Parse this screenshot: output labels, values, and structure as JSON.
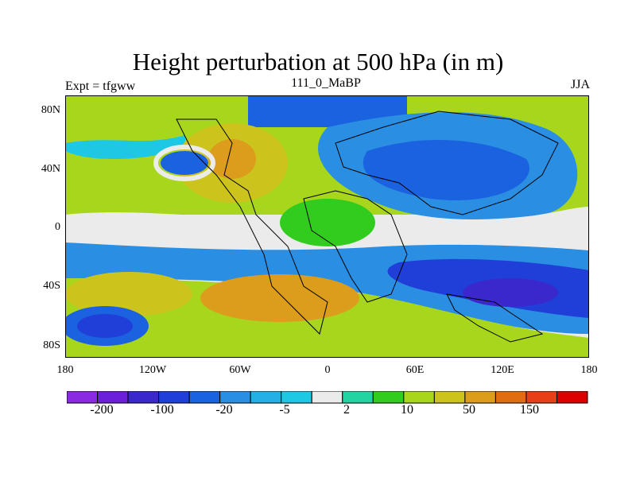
{
  "title": "Height perturbation at 500 hPa (in m)",
  "left_label": "Expt = tfgww",
  "center_label": "111_0_MaBP",
  "right_label": "JJA",
  "lat_ticks": [
    "80N",
    "40N",
    "0",
    "40S",
    "80S"
  ],
  "lon_ticks": [
    "180",
    "120W",
    "60W",
    "0",
    "60E",
    "120E",
    "180"
  ],
  "colorbar": {
    "colors": [
      "#8a2be2",
      "#6a1fd8",
      "#3a28cc",
      "#1f3fd8",
      "#1a62e0",
      "#2a8ee2",
      "#24b0e2",
      "#1ec8e4",
      "#ebebeb",
      "#24d4a0",
      "#32cc1e",
      "#a8d61c",
      "#ccc41c",
      "#dc9c1c",
      "#e06e10",
      "#e84016",
      "#dc0000"
    ],
    "labels": [
      "-200",
      "-100",
      "-20",
      "-5",
      "2",
      "10",
      "50",
      "150"
    ]
  },
  "colors": {
    "pale": "#ebebeb",
    "pos1": "#24d4a0",
    "pos2": "#32cc1e",
    "pos3": "#a8d61c",
    "pos4": "#ccc41c",
    "pos5": "#dc9c1c",
    "neg1": "#1ec8e4",
    "neg2": "#2a8ee2",
    "neg3": "#1a62e0",
    "neg4": "#1f3fd8",
    "neg5": "#3a28cc",
    "neg6": "#6a1fd8"
  }
}
